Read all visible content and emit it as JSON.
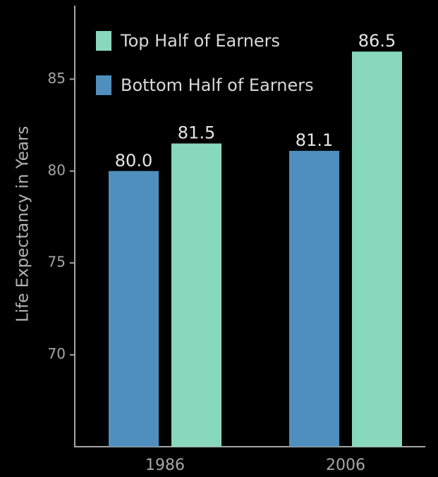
{
  "chart_data": {
    "type": "bar",
    "title": "",
    "xlabel": "",
    "ylabel": "Life Expectancy in Years",
    "categories": [
      "1986",
      "2006"
    ],
    "series": [
      {
        "name": "Bottom Half of Earners",
        "color": "#4f8fbd",
        "values": [
          80.0,
          81.1
        ],
        "labels": [
          "80.0",
          "81.1"
        ]
      },
      {
        "name": "Top Half of Earners",
        "color": "#88d8bd",
        "values": [
          81.5,
          86.5
        ],
        "labels": [
          "81.5",
          "86.5"
        ]
      }
    ],
    "legend_order": [
      1,
      0
    ],
    "legend_position": "top-left",
    "yticks": [
      "70",
      "75",
      "80",
      "85"
    ],
    "ylim": [
      65,
      89
    ],
    "grid": false,
    "background": "#000000",
    "axis_color": "#a6a6a6"
  }
}
